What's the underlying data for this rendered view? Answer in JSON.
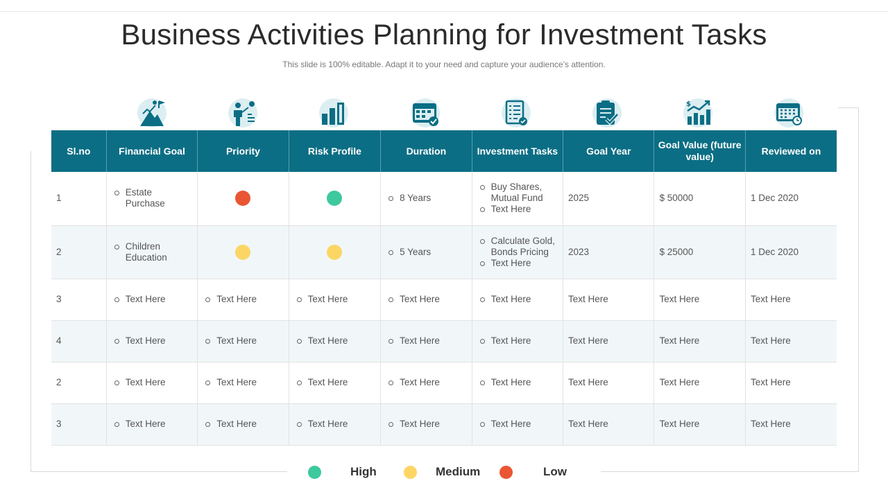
{
  "title": "Business Activities Planning for Investment Tasks",
  "subtitle": "This slide is 100% editable. Adapt it to your need and capture your audience’s attention.",
  "colors": {
    "header": "#0b6e84",
    "high": "#3dc99d",
    "medium": "#fcd665",
    "low": "#ea5533",
    "icon": "#0b6e84",
    "icon_bg": "#dbeef2"
  },
  "icons": [
    "mountain-goal-icon",
    "presenter-icon",
    "bar-chart-icon",
    "calendar-icon",
    "checklist-icon",
    "clipboard-check-icon",
    "growth-chart-icon",
    "calendar-clock-icon"
  ],
  "columns": [
    "Sl.no",
    "Financial Goal",
    "Priority",
    "Risk Profile",
    "Duration",
    "Investment Tasks",
    "Goal Year",
    "Goal Value (future value)",
    "Reviewed on"
  ],
  "rows": [
    {
      "slno": "1",
      "goal": [
        "Estate Purchase"
      ],
      "priority": "low",
      "risk": "high",
      "duration": [
        "8 Years"
      ],
      "tasks": [
        "Buy Shares, Mutual Fund",
        "Text Here"
      ],
      "year": "2025",
      "value": "$ 50000",
      "reviewed": "1 Dec 2020"
    },
    {
      "slno": "2",
      "goal": [
        "Children Education"
      ],
      "priority": "medium",
      "risk": "medium",
      "duration": [
        "5 Years"
      ],
      "tasks": [
        "Calculate Gold, Bonds Pricing",
        "Text Here"
      ],
      "year": "2023",
      "value": "$ 25000",
      "reviewed": "1 Dec 2020"
    },
    {
      "slno": "3",
      "goal": [
        "Text Here"
      ],
      "priority": "Text Here",
      "risk": "Text Here",
      "duration": [
        "Text Here"
      ],
      "tasks": [
        "Text Here"
      ],
      "year": "Text Here",
      "value": "Text Here",
      "reviewed": "Text Here"
    },
    {
      "slno": "4",
      "goal": [
        "Text Here"
      ],
      "priority": "Text Here",
      "risk": "Text Here",
      "duration": [
        "Text Here"
      ],
      "tasks": [
        "Text Here"
      ],
      "year": "Text Here",
      "value": "Text Here",
      "reviewed": "Text Here"
    },
    {
      "slno": "2",
      "goal": [
        "Text Here"
      ],
      "priority": "Text Here",
      "risk": "Text Here",
      "duration": [
        "Text Here"
      ],
      "tasks": [
        "Text Here"
      ],
      "year": "Text Here",
      "value": "Text Here",
      "reviewed": "Text Here"
    },
    {
      "slno": "3",
      "goal": [
        "Text Here"
      ],
      "priority": "Text Here",
      "risk": "Text Here",
      "duration": [
        "Text Here"
      ],
      "tasks": [
        "Text Here"
      ],
      "year": "Text Here",
      "value": "Text Here",
      "reviewed": "Text Here"
    }
  ],
  "legend": [
    {
      "level": "high",
      "label": "High"
    },
    {
      "level": "medium",
      "label": "Medium"
    },
    {
      "level": "low",
      "label": "Low"
    }
  ]
}
